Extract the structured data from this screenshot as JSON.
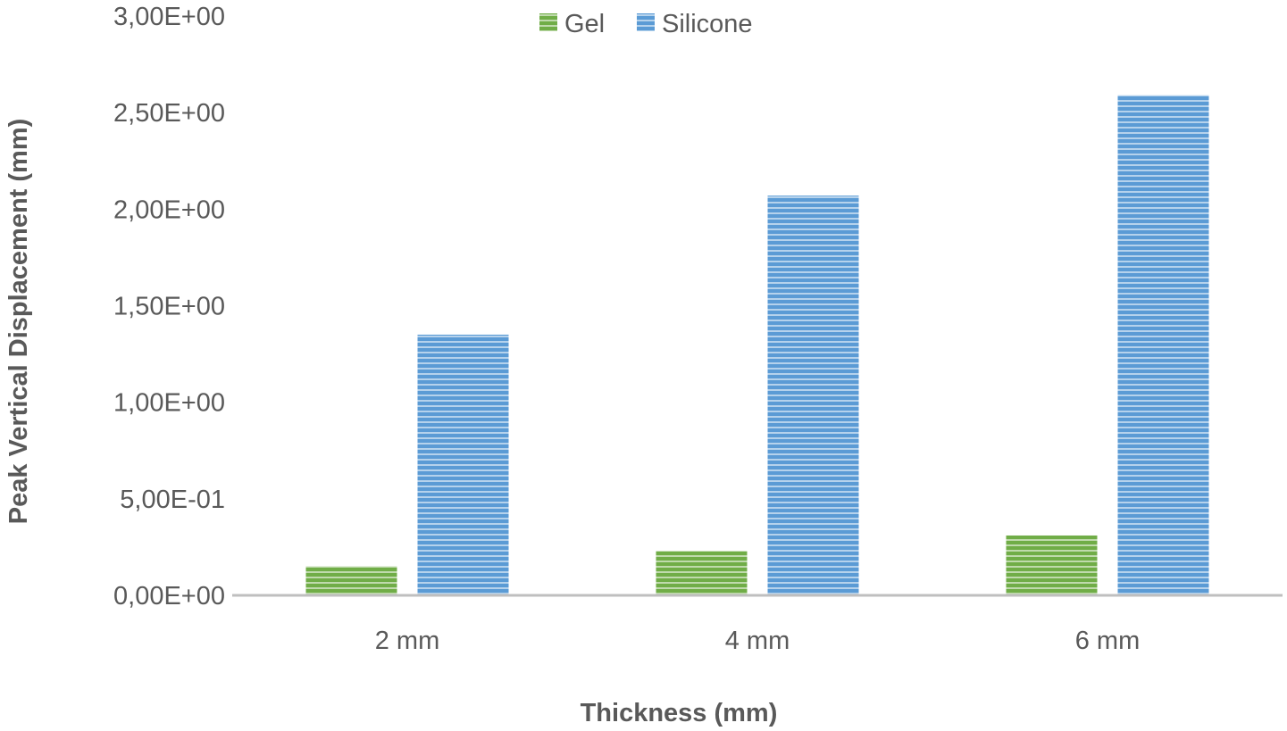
{
  "chart_data": {
    "type": "bar",
    "categories": [
      "2 mm",
      "4 mm",
      "6 mm"
    ],
    "series": [
      {
        "name": "Gel",
        "values": [
          0.15,
          0.23,
          0.31
        ],
        "color": "#70ad47"
      },
      {
        "name": "Silicone",
        "values": [
          1.35,
          2.07,
          2.59
        ],
        "color": "#5b9bd5"
      }
    ],
    "xlabel": "Thickness (mm)",
    "ylabel": "Peak Vertical Displacement (mm)",
    "ylim": [
      0,
      3.0
    ],
    "yticks": [
      0,
      0.5,
      1.0,
      1.5,
      2.0,
      2.5,
      3.0
    ],
    "ytick_labels": [
      "0,00E+00",
      "5,00E-01",
      "1,00E+00",
      "1,50E+00",
      "2,00E+00",
      "2,50E+00",
      "3,00E+00"
    ],
    "legend_position": "top-center",
    "grid": false,
    "bar_pattern": "horizontal-stripes"
  }
}
